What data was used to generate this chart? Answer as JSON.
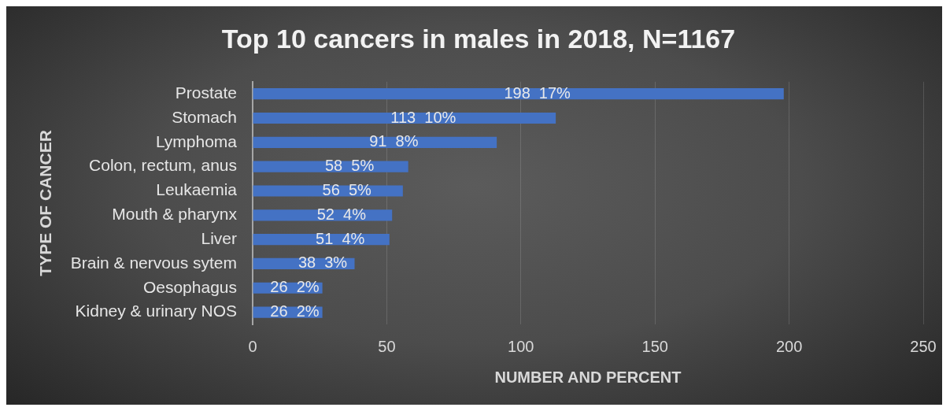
{
  "chart_data": {
    "type": "bar",
    "orientation": "horizontal",
    "title": "Top 10 cancers in males in 2018, N=1167",
    "xlabel": "NUMBER AND PERCENT",
    "ylabel": "TYPE OF CANCER",
    "categories": [
      "Prostate",
      "Stomach",
      "Lymphoma",
      "Colon, rectum, anus",
      "Leukaemia",
      "Mouth & pharynx",
      "Liver",
      "Brain & nervous sytem",
      "Oesophagus",
      "Kidney & urinary NOS"
    ],
    "values": [
      198,
      113,
      91,
      58,
      56,
      52,
      51,
      38,
      26,
      26
    ],
    "value_labels": [
      "198  17%",
      "113  10%",
      "91  8%",
      "58  5%",
      "56  5%",
      "52  4%",
      "51  4%",
      "38  3%",
      "26  2%",
      "26  2%"
    ],
    "color": "#4472c4",
    "xlim": [
      0,
      250
    ],
    "xticks": [
      0,
      50,
      100,
      150,
      200,
      250
    ],
    "grid": "x",
    "legend": false
  }
}
